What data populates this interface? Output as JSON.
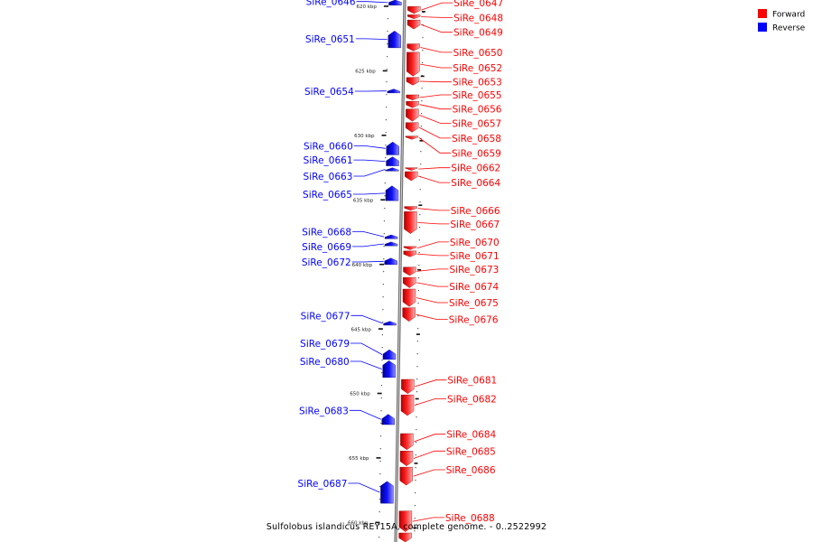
{
  "caption": "Sulfolobus islandicus REY15A, complete genome. - 0..2522992",
  "legend": [
    {
      "label": "Forward",
      "color": "#ff0000"
    },
    {
      "label": "Reverse",
      "color": "#0000ff"
    }
  ],
  "colors": {
    "forward": "#ff0000",
    "reverse": "#0000ff",
    "backbone": "#8c8c8c"
  },
  "axis": {
    "start_kbp": 619.5,
    "end_kbp": 661.5
  },
  "ticks": [
    {
      "kbp": 620,
      "label": "620 kbp"
    },
    {
      "kbp": 625,
      "label": "625 kbp"
    },
    {
      "kbp": 630,
      "label": "630 kbp"
    },
    {
      "kbp": 635,
      "label": "635 kbp"
    },
    {
      "kbp": 640,
      "label": "640 kbp"
    },
    {
      "kbp": 645,
      "label": "645 kbp"
    },
    {
      "kbp": 650,
      "label": "650 kbp"
    },
    {
      "kbp": 655,
      "label": "655 kbp"
    },
    {
      "kbp": 660,
      "label": "660 kbp"
    }
  ],
  "genes": [
    {
      "id": "SiRe_0646",
      "strand": "reverse",
      "start_kbp": 619.5,
      "end_kbp": 619.9
    },
    {
      "id": "SiRe_0647",
      "strand": "forward",
      "start_kbp": 620.0,
      "end_kbp": 620.55
    },
    {
      "id": "SiRe_0648",
      "strand": "forward",
      "start_kbp": 620.65,
      "end_kbp": 620.95
    },
    {
      "id": "SiRe_0649",
      "strand": "forward",
      "start_kbp": 621.05,
      "end_kbp": 621.75
    },
    {
      "id": "SiRe_0650",
      "strand": "forward",
      "start_kbp": 622.9,
      "end_kbp": 623.45
    },
    {
      "id": "SiRe_0651",
      "strand": "reverse",
      "start_kbp": 621.9,
      "end_kbp": 623.2
    },
    {
      "id": "SiRe_0652",
      "strand": "forward",
      "start_kbp": 623.55,
      "end_kbp": 625.4
    },
    {
      "id": "SiRe_0653",
      "strand": "forward",
      "start_kbp": 625.5,
      "end_kbp": 626.1
    },
    {
      "id": "SiRe_0654",
      "strand": "reverse",
      "start_kbp": 626.4,
      "end_kbp": 626.7
    },
    {
      "id": "SiRe_0655",
      "strand": "forward",
      "start_kbp": 626.85,
      "end_kbp": 627.25
    },
    {
      "id": "SiRe_0656",
      "strand": "forward",
      "start_kbp": 627.35,
      "end_kbp": 627.85
    },
    {
      "id": "SiRe_0657",
      "strand": "forward",
      "start_kbp": 627.95,
      "end_kbp": 628.9
    },
    {
      "id": "SiRe_0658",
      "strand": "forward",
      "start_kbp": 629.0,
      "end_kbp": 629.75
    },
    {
      "id": "SiRe_0659",
      "strand": "forward",
      "start_kbp": 630.05,
      "end_kbp": 630.3
    },
    {
      "id": "SiRe_0660",
      "strand": "reverse",
      "start_kbp": 630.5,
      "end_kbp": 631.5
    },
    {
      "id": "SiRe_0661",
      "strand": "reverse",
      "start_kbp": 631.65,
      "end_kbp": 632.35
    },
    {
      "id": "SiRe_0662",
      "strand": "forward",
      "start_kbp": 632.5,
      "end_kbp": 632.7
    },
    {
      "id": "SiRe_0663",
      "strand": "reverse",
      "start_kbp": 632.5,
      "end_kbp": 632.75
    },
    {
      "id": "SiRe_0664",
      "strand": "forward",
      "start_kbp": 632.8,
      "end_kbp": 633.5
    },
    {
      "id": "SiRe_0665",
      "strand": "reverse",
      "start_kbp": 633.9,
      "end_kbp": 635.05
    },
    {
      "id": "SiRe_0666",
      "strand": "forward",
      "start_kbp": 635.5,
      "end_kbp": 635.8
    },
    {
      "id": "SiRe_0667",
      "strand": "forward",
      "start_kbp": 635.9,
      "end_kbp": 637.6
    },
    {
      "id": "SiRe_0668",
      "strand": "reverse",
      "start_kbp": 637.7,
      "end_kbp": 638.0
    },
    {
      "id": "SiRe_0669",
      "strand": "reverse",
      "start_kbp": 638.25,
      "end_kbp": 638.55
    },
    {
      "id": "SiRe_0670",
      "strand": "forward",
      "start_kbp": 638.6,
      "end_kbp": 638.85
    },
    {
      "id": "SiRe_0671",
      "strand": "forward",
      "start_kbp": 638.95,
      "end_kbp": 639.4
    },
    {
      "id": "SiRe_0672",
      "strand": "reverse",
      "start_kbp": 639.5,
      "end_kbp": 640.0
    },
    {
      "id": "SiRe_0673",
      "strand": "forward",
      "start_kbp": 640.2,
      "end_kbp": 640.85
    },
    {
      "id": "SiRe_0674",
      "strand": "forward",
      "start_kbp": 641.0,
      "end_kbp": 641.8
    },
    {
      "id": "SiRe_0675",
      "strand": "forward",
      "start_kbp": 641.9,
      "end_kbp": 643.25
    },
    {
      "id": "SiRe_0676",
      "strand": "forward",
      "start_kbp": 643.35,
      "end_kbp": 644.4
    },
    {
      "id": "SiRe_0677",
      "strand": "reverse",
      "start_kbp": 644.4,
      "end_kbp": 644.7
    },
    {
      "id": "SiRe_0679",
      "strand": "reverse",
      "start_kbp": 646.6,
      "end_kbp": 647.35
    },
    {
      "id": "SiRe_0680",
      "strand": "reverse",
      "start_kbp": 647.45,
      "end_kbp": 648.75
    },
    {
      "id": "SiRe_0681",
      "strand": "forward",
      "start_kbp": 648.9,
      "end_kbp": 650.0
    },
    {
      "id": "SiRe_0682",
      "strand": "forward",
      "start_kbp": 650.1,
      "end_kbp": 651.7
    },
    {
      "id": "SiRe_0683",
      "strand": "reverse",
      "start_kbp": 651.6,
      "end_kbp": 652.4
    },
    {
      "id": "SiRe_0684",
      "strand": "forward",
      "start_kbp": 653.1,
      "end_kbp": 654.35
    },
    {
      "id": "SiRe_0685",
      "strand": "forward",
      "start_kbp": 654.45,
      "end_kbp": 655.6
    },
    {
      "id": "SiRe_0686",
      "strand": "forward",
      "start_kbp": 655.7,
      "end_kbp": 657.1
    },
    {
      "id": "SiRe_0687",
      "strand": "reverse",
      "start_kbp": 656.8,
      "end_kbp": 658.5
    },
    {
      "id": "SiRe_0688",
      "strand": "forward",
      "start_kbp": 659.1,
      "end_kbp": 660.7
    },
    {
      "id": "SiRe_0689",
      "strand": "forward",
      "start_kbp": 660.8,
      "end_kbp": 661.5
    }
  ],
  "labels": [
    {
      "gene": "SiRe_0646",
      "text": "SiRe_0646",
      "side": "left",
      "label_kbp": 619.62
    },
    {
      "gene": "SiRe_0647",
      "text": "SiRe_0647",
      "side": "right",
      "label_kbp": 619.72
    },
    {
      "gene": "SiRe_0648",
      "text": "SiRe_0648",
      "side": "right",
      "label_kbp": 620.86
    },
    {
      "gene": "SiRe_0649",
      "text": "SiRe_0649",
      "side": "right",
      "label_kbp": 622.0
    },
    {
      "gene": "SiRe_0651",
      "text": "SiRe_0651",
      "side": "left",
      "label_kbp": 622.5
    },
    {
      "gene": "SiRe_0650",
      "text": "SiRe_0650",
      "side": "right",
      "label_kbp": 623.55
    },
    {
      "gene": "SiRe_0652",
      "text": "SiRe_0652",
      "side": "right",
      "label_kbp": 624.75
    },
    {
      "gene": "SiRe_0653",
      "text": "SiRe_0653",
      "side": "right",
      "label_kbp": 625.85
    },
    {
      "gene": "SiRe_0654",
      "text": "SiRe_0654",
      "side": "left",
      "label_kbp": 626.57
    },
    {
      "gene": "SiRe_0655",
      "text": "SiRe_0655",
      "side": "right",
      "label_kbp": 626.85
    },
    {
      "gene": "SiRe_0656",
      "text": "SiRe_0656",
      "side": "right",
      "label_kbp": 627.95
    },
    {
      "gene": "SiRe_0657",
      "text": "SiRe_0657",
      "side": "right",
      "label_kbp": 629.05
    },
    {
      "gene": "SiRe_0658",
      "text": "SiRe_0658",
      "side": "right",
      "label_kbp": 630.2
    },
    {
      "gene": "SiRe_0660",
      "text": "SiRe_0660",
      "side": "left",
      "label_kbp": 630.8
    },
    {
      "gene": "SiRe_0659",
      "text": "SiRe_0659",
      "side": "right",
      "label_kbp": 631.35
    },
    {
      "gene": "SiRe_0661",
      "text": "SiRe_0661",
      "side": "left",
      "label_kbp": 631.9
    },
    {
      "gene": "SiRe_0662",
      "text": "SiRe_0662",
      "side": "right",
      "label_kbp": 632.5
    },
    {
      "gene": "SiRe_0663",
      "text": "SiRe_0663",
      "side": "left",
      "label_kbp": 633.15
    },
    {
      "gene": "SiRe_0664",
      "text": "SiRe_0664",
      "side": "right",
      "label_kbp": 633.65
    },
    {
      "gene": "SiRe_0665",
      "text": "SiRe_0665",
      "side": "left",
      "label_kbp": 634.55
    },
    {
      "gene": "SiRe_0666",
      "text": "SiRe_0666",
      "side": "right",
      "label_kbp": 635.8
    },
    {
      "gene": "SiRe_0667",
      "text": "SiRe_0667",
      "side": "right",
      "label_kbp": 636.85
    },
    {
      "gene": "SiRe_0668",
      "text": "SiRe_0668",
      "side": "left",
      "label_kbp": 637.45
    },
    {
      "gene": "SiRe_0670",
      "text": "SiRe_0670",
      "side": "right",
      "label_kbp": 638.25
    },
    {
      "gene": "SiRe_0669",
      "text": "SiRe_0669",
      "side": "left",
      "label_kbp": 638.6
    },
    {
      "gene": "SiRe_0671",
      "text": "SiRe_0671",
      "side": "right",
      "label_kbp": 639.3
    },
    {
      "gene": "SiRe_0672",
      "text": "SiRe_0672",
      "side": "left",
      "label_kbp": 639.8
    },
    {
      "gene": "SiRe_0673",
      "text": "SiRe_0673",
      "side": "right",
      "label_kbp": 640.35
    },
    {
      "gene": "SiRe_0674",
      "text": "SiRe_0674",
      "side": "right",
      "label_kbp": 641.7
    },
    {
      "gene": "SiRe_0675",
      "text": "SiRe_0675",
      "side": "right",
      "label_kbp": 642.95
    },
    {
      "gene": "SiRe_0676",
      "text": "SiRe_0676",
      "side": "right",
      "label_kbp": 644.25
    },
    {
      "gene": "SiRe_0677",
      "text": "SiRe_0677",
      "side": "left",
      "label_kbp": 643.95
    },
    {
      "gene": "SiRe_0679",
      "text": "SiRe_0679",
      "side": "left",
      "label_kbp": 646.1
    },
    {
      "gene": "SiRe_0680",
      "text": "SiRe_0680",
      "side": "left",
      "label_kbp": 647.5
    },
    {
      "gene": "SiRe_0681",
      "text": "SiRe_0681",
      "side": "right",
      "label_kbp": 648.95
    },
    {
      "gene": "SiRe_0682",
      "text": "SiRe_0682",
      "side": "right",
      "label_kbp": 650.4
    },
    {
      "gene": "SiRe_0683",
      "text": "SiRe_0683",
      "side": "left",
      "label_kbp": 651.3
    },
    {
      "gene": "SiRe_0684",
      "text": "SiRe_0684",
      "side": "right",
      "label_kbp": 653.15
    },
    {
      "gene": "SiRe_0685",
      "text": "SiRe_0685",
      "side": "right",
      "label_kbp": 654.45
    },
    {
      "gene": "SiRe_0686",
      "text": "SiRe_0686",
      "side": "right",
      "label_kbp": 655.9
    },
    {
      "gene": "SiRe_0687",
      "text": "SiRe_0687",
      "side": "left",
      "label_kbp": 656.95
    },
    {
      "gene": "SiRe_0688",
      "text": "SiRe_0688",
      "side": "right",
      "label_kbp": 659.6
    }
  ]
}
